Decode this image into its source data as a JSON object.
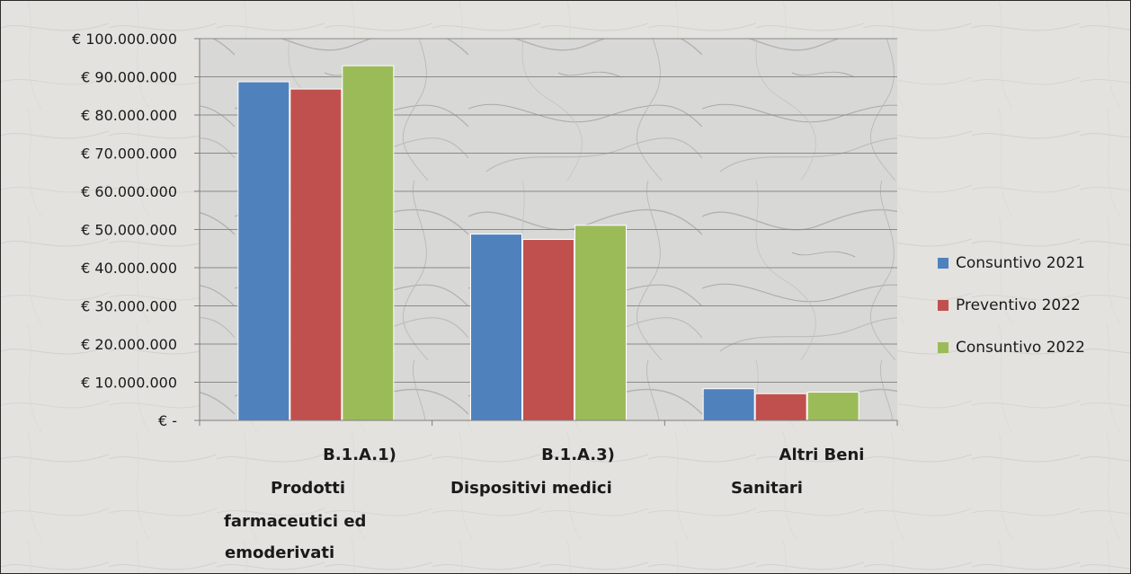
{
  "chart_data": {
    "type": "bar",
    "categories": [
      [
        "B.1.A.1)",
        "Prodotti",
        "farmaceutici ed",
        "emoderivati"
      ],
      [
        "B.1.A.3)",
        "Dispositivi medici"
      ],
      [
        "Altri Beni",
        "Sanitari"
      ]
    ],
    "series": [
      {
        "name": "Consuntivo 2021",
        "color": "#4f81bd",
        "values": [
          88700000,
          48800000,
          8300000
        ]
      },
      {
        "name": "Preventivo 2022",
        "color": "#c0504d",
        "values": [
          86800000,
          47400000,
          7000000
        ]
      },
      {
        "name": "Consuntivo 2022",
        "color": "#9bbb59",
        "values": [
          92900000,
          51100000,
          7400000
        ]
      }
    ],
    "y_ticks": [
      {
        "value": 0,
        "label": "€ -"
      },
      {
        "value": 10000000,
        "label": "€ 10.000.000"
      },
      {
        "value": 20000000,
        "label": "€ 20.000.000"
      },
      {
        "value": 30000000,
        "label": "€ 30.000.000"
      },
      {
        "value": 40000000,
        "label": "€ 40.000.000"
      },
      {
        "value": 50000000,
        "label": "€ 50.000.000"
      },
      {
        "value": 60000000,
        "label": "€ 60.000.000"
      },
      {
        "value": 70000000,
        "label": "€ 70.000.000"
      },
      {
        "value": 80000000,
        "label": "€ 80.000.000"
      },
      {
        "value": 90000000,
        "label": "€ 90.000.000"
      },
      {
        "value": 100000000,
        "label": "€ 100.000.000"
      }
    ],
    "ylim": [
      0,
      100000000
    ],
    "grid": true,
    "legend_position": "right",
    "title": "",
    "xlabel": "",
    "ylabel": ""
  }
}
